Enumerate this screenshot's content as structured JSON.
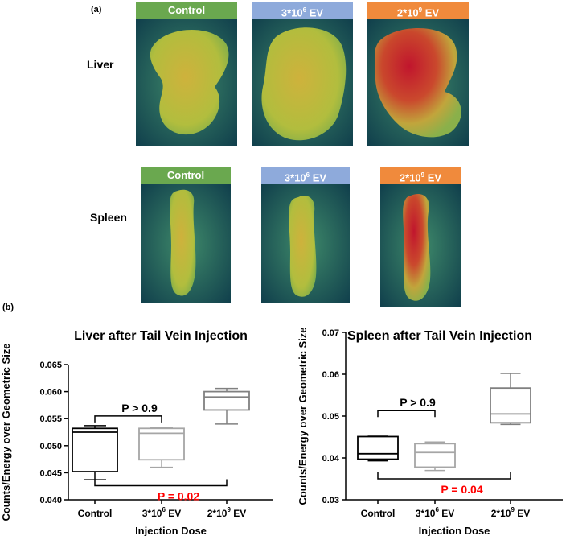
{
  "panel_a_label": "(a)",
  "panel_b_label": "(b)",
  "rows": {
    "liver": "Liver",
    "spleen": "Spleen"
  },
  "image_headers": {
    "control": "Control",
    "low": {
      "base": "3*10",
      "exp": "6",
      "suffix": " EV"
    },
    "high": {
      "base": "2*10",
      "exp": "9",
      "suffix": " EV"
    }
  },
  "colors": {
    "control_header": "#6aa84f",
    "low_header": "#8eaadb",
    "high_header": "#f08a3c",
    "control_box": "#000000",
    "low_box": "#a6a6a6",
    "high_box": "#808080",
    "significant_p": "#ff0000"
  },
  "chart_data": [
    {
      "type": "box",
      "title": "Liver after Tail Vein Injection",
      "xlabel": "Injection Dose",
      "ylabel": "Counts/Energy over Geometric Size",
      "ylim": [
        0.04,
        0.065
      ],
      "yticks": [
        "0.040",
        "0.045",
        "0.050",
        "0.055",
        "0.060",
        "0.065"
      ],
      "ytick_values": [
        0.04,
        0.045,
        0.05,
        0.055,
        0.06,
        0.065
      ],
      "categories": [
        {
          "base": "Control",
          "exp": "",
          "suffix": ""
        },
        {
          "base": "3*10",
          "exp": "6",
          "suffix": " EV"
        },
        {
          "base": "2*10",
          "exp": "9",
          "suffix": " EV"
        }
      ],
      "boxes": [
        {
          "min": 0.0437,
          "q1": 0.0452,
          "median": 0.0525,
          "q3": 0.0532,
          "max": 0.0537
        },
        {
          "min": 0.046,
          "q1": 0.0474,
          "median": 0.0523,
          "q3": 0.0532,
          "max": 0.0534
        },
        {
          "min": 0.054,
          "q1": 0.0566,
          "median": 0.059,
          "q3": 0.06,
          "max": 0.0606
        }
      ],
      "comparisons": [
        {
          "from": 0,
          "to": 1,
          "y": 0.0555,
          "label": "P > 0.9",
          "significant": false,
          "side": "above"
        },
        {
          "from": 0,
          "to": 2,
          "y": 0.0426,
          "label": "P = 0.02",
          "significant": true,
          "side": "below"
        }
      ]
    },
    {
      "type": "box",
      "title": "Spleen after Tail Vein Injection",
      "xlabel": "Injection Dose",
      "ylabel": "Counts/Energy over Geometric Size",
      "ylim": [
        0.03,
        0.07
      ],
      "yticks": [
        "0.03",
        "0.04",
        "0.05",
        "0.06",
        "0.07"
      ],
      "ytick_values": [
        0.03,
        0.04,
        0.05,
        0.06,
        0.07
      ],
      "categories": [
        {
          "base": "Control",
          "exp": "",
          "suffix": ""
        },
        {
          "base": "3*10",
          "exp": "6",
          "suffix": " EV"
        },
        {
          "base": "2*10",
          "exp": "9",
          "suffix": " EV"
        }
      ],
      "boxes": [
        {
          "min": 0.0393,
          "q1": 0.0397,
          "median": 0.041,
          "q3": 0.0451,
          "max": 0.0452
        },
        {
          "min": 0.037,
          "q1": 0.0378,
          "median": 0.0413,
          "q3": 0.0434,
          "max": 0.0438
        },
        {
          "min": 0.048,
          "q1": 0.0484,
          "median": 0.0505,
          "q3": 0.0567,
          "max": 0.0602
        }
      ],
      "comparisons": [
        {
          "from": 0,
          "to": 1,
          "y": 0.0513,
          "label": "P > 0.9",
          "significant": false,
          "side": "above"
        },
        {
          "from": 0,
          "to": 2,
          "y": 0.035,
          "label": "P = 0.04",
          "significant": true,
          "side": "below"
        }
      ]
    }
  ]
}
